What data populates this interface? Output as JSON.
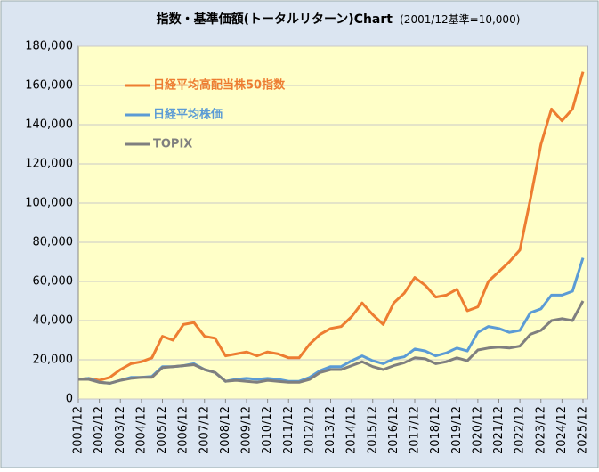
{
  "chart_data": {
    "type": "line",
    "title": "指数・基準価額(トータルリターン)Chart",
    "subtitle": "(2001/12基準=10,000)",
    "categories": [
      "2001/12",
      null,
      "2002/12",
      null,
      "2003/12",
      null,
      "2004/12",
      null,
      "2005/12",
      null,
      "2006/12",
      null,
      "2007/12",
      null,
      "2008/12",
      null,
      "2009/12",
      null,
      "2010/12",
      null,
      "2011/12",
      null,
      "2012/12",
      null,
      "2013/12",
      null,
      "2014/12",
      null,
      "2015/12",
      null,
      "2016/12",
      null,
      "2017/12",
      null,
      "2018/12",
      null,
      "2019/12",
      null,
      "2020/12",
      null,
      "2021/12",
      null,
      "2022/12",
      null,
      "2023/12",
      null,
      "2024/12",
      null,
      "2025/12"
    ],
    "series": [
      {
        "name": "日経平均高配当株50指数",
        "color": "#ed7d31",
        "values": [
          10000,
          10500,
          9500,
          11000,
          15000,
          18000,
          19000,
          21000,
          32000,
          30000,
          38000,
          39000,
          32000,
          31000,
          22000,
          23000,
          24000,
          22000,
          24000,
          23000,
          21000,
          21000,
          28000,
          33000,
          36000,
          37000,
          42000,
          49000,
          43000,
          38000,
          49000,
          54000,
          62000,
          58000,
          52000,
          53000,
          56000,
          45000,
          47000,
          60000,
          65000,
          70000,
          76000,
          102000,
          130000,
          148000,
          142000,
          148000,
          167000
        ]
      },
      {
        "name": "日経平均株価",
        "color": "#5b9bd5",
        "values": [
          10000,
          10500,
          8500,
          8000,
          9500,
          11000,
          11000,
          11500,
          16500,
          16500,
          17000,
          18000,
          15000,
          13500,
          9000,
          10000,
          10500,
          10000,
          10500,
          10000,
          9000,
          9000,
          11000,
          14500,
          16500,
          16500,
          19500,
          22000,
          19500,
          18000,
          20500,
          21500,
          25500,
          24500,
          22000,
          23500,
          26000,
          24500,
          34000,
          37000,
          36000,
          34000,
          35000,
          44000,
          46000,
          53000,
          53000,
          55000,
          72000
        ]
      },
      {
        "name": "TOPIX",
        "color": "#7f7f7f",
        "values": [
          10000,
          10000,
          8500,
          8000,
          9500,
          10500,
          11000,
          11000,
          16000,
          16500,
          17000,
          17500,
          15000,
          13500,
          9000,
          9500,
          9000,
          8500,
          9500,
          9000,
          8500,
          8500,
          10000,
          13500,
          15000,
          15000,
          17000,
          19000,
          16500,
          15000,
          17000,
          18500,
          21000,
          20500,
          18000,
          19000,
          21000,
          19500,
          25000,
          26000,
          26500,
          26000,
          27000,
          33000,
          35000,
          40000,
          41000,
          40000,
          50000
        ]
      }
    ],
    "ylim": [
      0,
      180000
    ],
    "yticks": [
      0,
      {
        "value": 20000,
        "label": "20,000"
      },
      {
        "value": 40000,
        "label": "40,000"
      },
      {
        "value": 60000,
        "label": "60,000"
      },
      {
        "value": 80000,
        "label": "80,000"
      },
      {
        "value": 100000,
        "label": "100,000"
      },
      {
        "value": 120000,
        "label": "120,000"
      },
      {
        "value": 140000,
        "label": "140,000"
      },
      {
        "value": 160000,
        "label": "160,000"
      },
      {
        "value": 180000,
        "label": "180,000"
      }
    ],
    "grid": true,
    "legend": "upper-left"
  }
}
